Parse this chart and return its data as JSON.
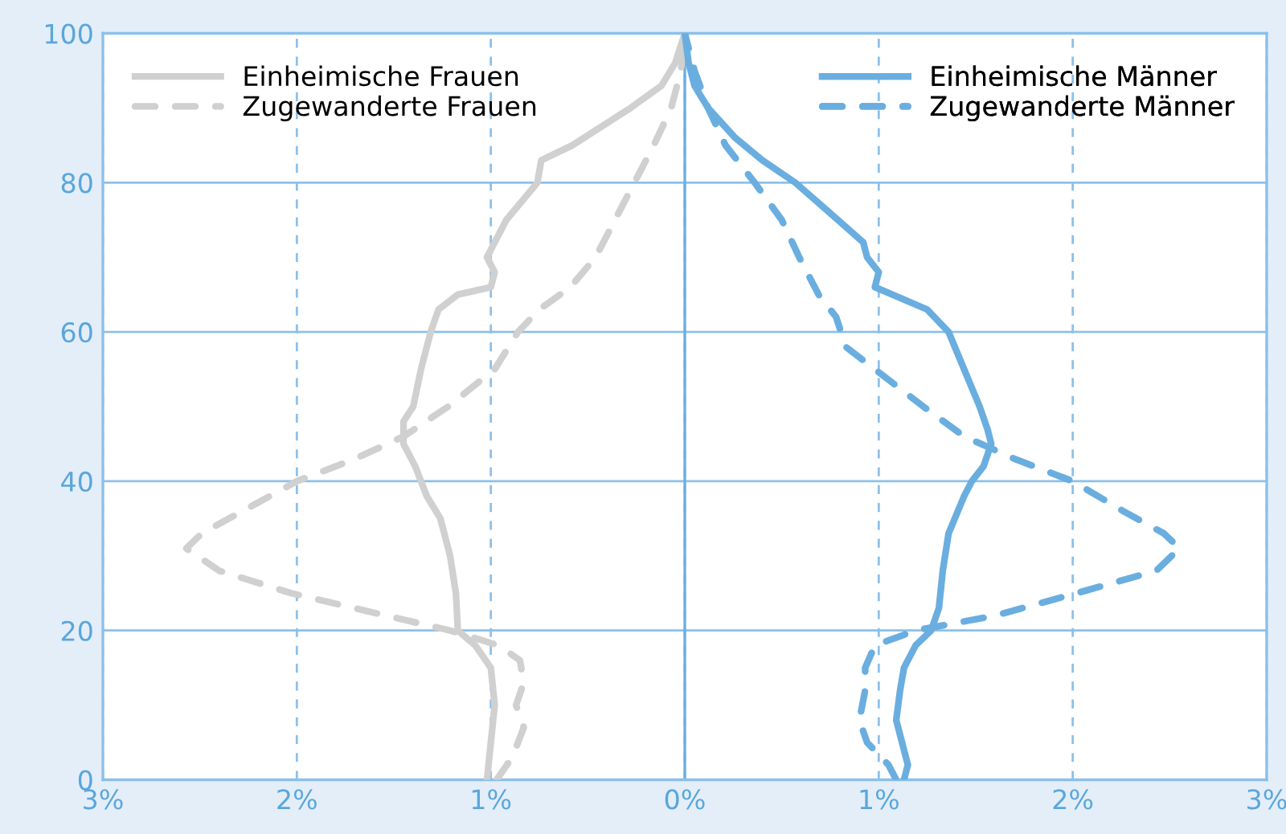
{
  "chart_data": {
    "type": "line",
    "xlim": [
      -3,
      3
    ],
    "ylim": [
      0,
      100
    ],
    "xticks": [
      {
        "value": -3,
        "label": "3%"
      },
      {
        "value": -2,
        "label": "2%"
      },
      {
        "value": -1,
        "label": "1%"
      },
      {
        "value": 0,
        "label": "0%"
      },
      {
        "value": 1,
        "label": "1%"
      },
      {
        "value": 2,
        "label": "2%"
      },
      {
        "value": 3,
        "label": "3%"
      }
    ],
    "yticks": [
      0,
      20,
      40,
      60,
      80,
      100
    ],
    "grid": true,
    "legend": "top",
    "ref_lines": [
      {
        "axis": "x",
        "value": 0,
        "color": "#6aaee0",
        "line_style": "solid"
      }
    ],
    "series": [
      {
        "name": "Einheimische Frauen",
        "color": "#d0d0d0",
        "line_style": "solid",
        "x": [
          -1.02,
          -1.0,
          -0.98,
          -1.0,
          -1.08,
          -1.17,
          -1.18,
          -1.21,
          -1.26,
          -1.33,
          -1.39,
          -1.45,
          -1.45,
          -1.4,
          -1.36,
          -1.31,
          -1.27,
          -1.17,
          -1.0,
          -0.98,
          -1.02,
          -0.98,
          -0.92,
          -0.76,
          -0.74,
          -0.58,
          -0.4,
          -0.28,
          -0.12,
          -0.05,
          0
        ],
        "values": [
          0,
          5,
          10,
          15,
          18,
          20,
          25,
          30,
          35,
          38,
          42,
          45,
          48,
          50,
          55,
          60,
          63,
          65,
          66,
          68,
          70,
          72,
          75,
          80,
          83,
          85,
          88,
          90,
          93,
          96,
          100
        ]
      },
      {
        "name": "Zugewanderte Frauen",
        "color": "#d0d0d0",
        "line_style": "dashed",
        "x": [
          -0.97,
          -0.89,
          -0.83,
          -0.87,
          -0.83,
          -0.85,
          -0.96,
          -1.21,
          -1.54,
          -2.03,
          -2.4,
          -2.57,
          -2.49,
          -2.28,
          -2.0,
          -1.7,
          -1.45,
          -1.22,
          -0.98,
          -0.86,
          -0.75,
          -0.59,
          -0.46,
          -0.36,
          -0.26,
          -0.16,
          -0.07,
          -0.02,
          0
        ],
        "values": [
          0,
          3,
          7,
          10,
          13,
          16,
          18,
          20,
          22,
          25,
          28,
          31,
          33,
          36,
          40,
          43,
          46,
          50,
          55,
          60,
          63,
          66,
          70,
          75,
          80,
          85,
          90,
          95,
          100
        ]
      },
      {
        "name": "Einheimische Männer",
        "color": "#6aaee0",
        "line_style": "solid",
        "x": [
          1.13,
          1.15,
          1.12,
          1.09,
          1.11,
          1.13,
          1.19,
          1.27,
          1.31,
          1.33,
          1.36,
          1.44,
          1.48,
          1.54,
          1.58,
          1.56,
          1.52,
          1.44,
          1.36,
          1.25,
          1.07,
          0.98,
          1.0,
          0.94,
          0.92,
          0.79,
          0.57,
          0.4,
          0.26,
          0.12,
          0.05,
          0.02,
          0
        ],
        "values": [
          0,
          2,
          5,
          8,
          12,
          15,
          18,
          20,
          23,
          28,
          33,
          38,
          40,
          42,
          45,
          47,
          50,
          55,
          60,
          63,
          65,
          66,
          68,
          70,
          72,
          75,
          80,
          83,
          86,
          90,
          93,
          96,
          100
        ]
      },
      {
        "name": "Zugewanderte Männer",
        "color": "#6aaee0",
        "line_style": "dashed",
        "x": [
          1.09,
          1.05,
          0.94,
          0.9,
          0.93,
          0.93,
          0.98,
          1.19,
          1.6,
          2.02,
          2.43,
          2.55,
          2.47,
          2.26,
          2.0,
          1.7,
          1.44,
          1.23,
          0.98,
          0.83,
          0.78,
          0.69,
          0.59,
          0.5,
          0.36,
          0.21,
          0.12,
          0.05,
          0
        ],
        "values": [
          0,
          2,
          5,
          8,
          12,
          15,
          18,
          20,
          22,
          25,
          28,
          31,
          33,
          36,
          40,
          43,
          46,
          50,
          55,
          58,
          62,
          65,
          70,
          75,
          80,
          85,
          90,
          95,
          100
        ]
      }
    ]
  }
}
